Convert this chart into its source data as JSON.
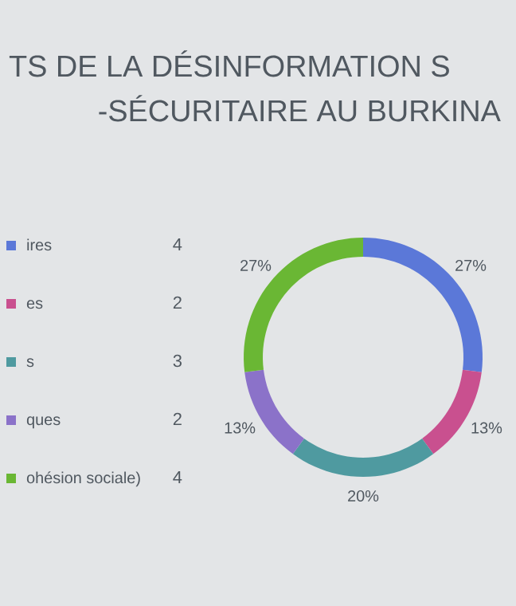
{
  "chart_data": {
    "type": "donut",
    "title": "TS DE LA DÉSINFORMATION S",
    "subtitle": "-SÉCURITAIRE AU BURKINA",
    "categories": [
      "ires",
      "es",
      "s",
      "ques",
      "ohésion sociale)"
    ],
    "values": [
      27,
      13,
      20,
      13,
      27
    ],
    "value_labels": [
      "27%",
      "13%",
      "20%",
      "13%",
      "27%"
    ],
    "colors": [
      "#5b78d8",
      "#c9508f",
      "#4f9aa0",
      "#8b72c9",
      "#6ab734"
    ],
    "annotations": [
      "4",
      "2",
      "3",
      "2",
      "4"
    ],
    "legend": "left"
  }
}
